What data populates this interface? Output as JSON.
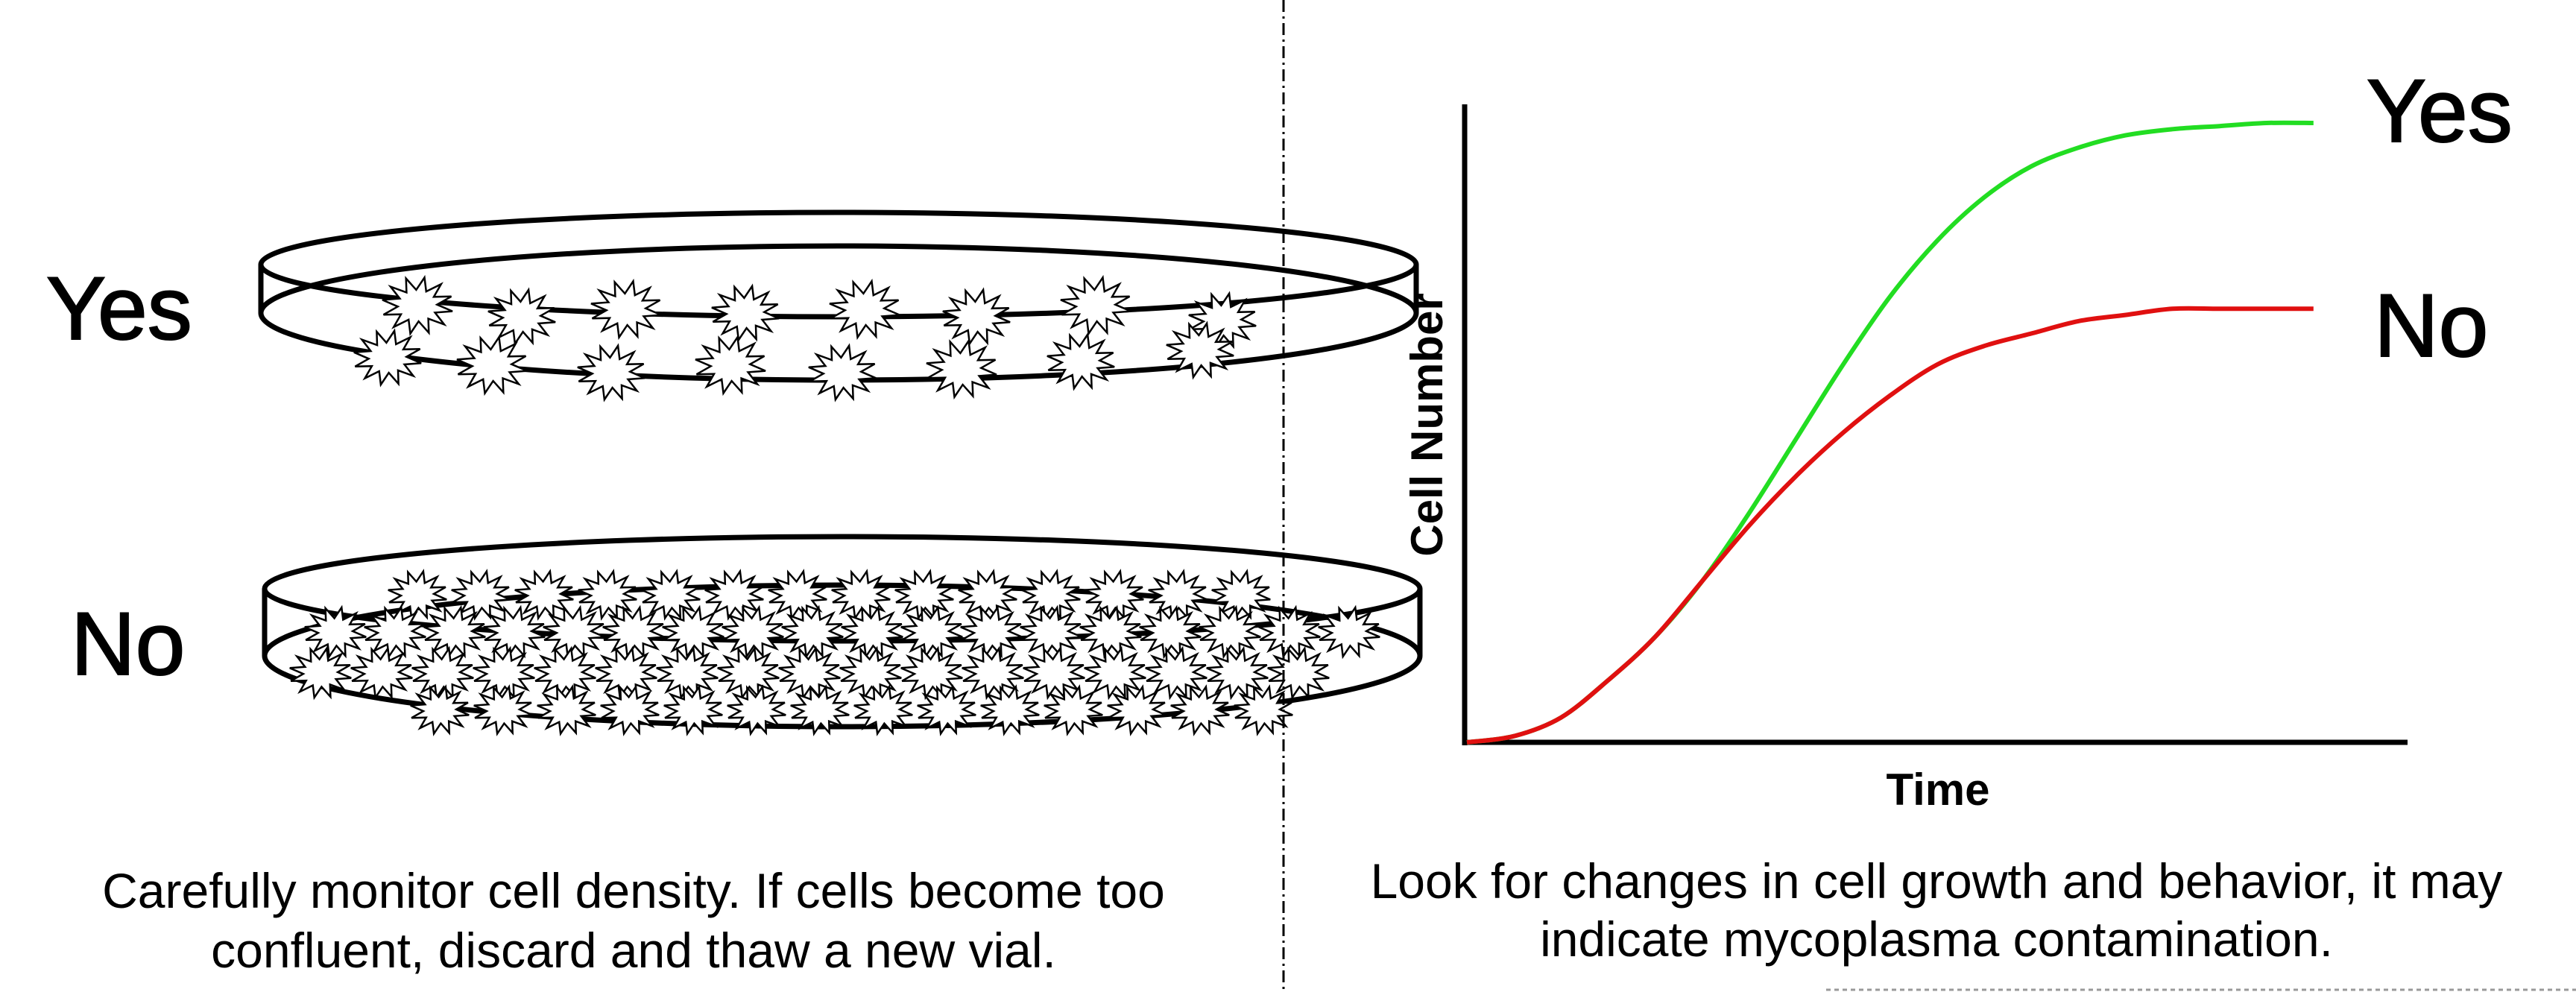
{
  "left_panel": {
    "dish_yes_label": "Yes",
    "dish_no_label": "No",
    "caption_line1": "Carefully monitor cell density. If cells become too",
    "caption_line2": "confluent, discard and thaw a new vial."
  },
  "right_panel": {
    "caption_line1": "Look for changes in cell growth and behavior, it may",
    "caption_line2": "indicate mycoplasma contamination."
  },
  "colors": {
    "yes": "#22dd22",
    "no": "#e01010",
    "line": "#000000"
  },
  "chart_data": {
    "type": "line",
    "title": "",
    "xlabel": "Time",
    "ylabel": "Cell Number",
    "grid": false,
    "x": [
      0,
      0.05,
      0.1,
      0.15,
      0.2,
      0.25,
      0.3,
      0.35,
      0.4,
      0.45,
      0.5,
      0.55,
      0.6,
      0.65,
      0.7,
      0.75,
      0.8,
      0.85,
      0.9
    ],
    "series": [
      {
        "name": "Yes",
        "color": "#22dd22",
        "values": [
          0.0,
          0.01,
          0.04,
          0.1,
          0.17,
          0.26,
          0.37,
          0.49,
          0.61,
          0.72,
          0.81,
          0.88,
          0.93,
          0.96,
          0.98,
          0.99,
          0.995,
          1.0,
          1.0
        ]
      },
      {
        "name": "No",
        "color": "#e01010",
        "values": [
          0.0,
          0.01,
          0.04,
          0.1,
          0.17,
          0.26,
          0.35,
          0.43,
          0.5,
          0.56,
          0.61,
          0.64,
          0.66,
          0.68,
          0.69,
          0.7,
          0.7,
          0.7,
          0.7
        ]
      }
    ]
  }
}
